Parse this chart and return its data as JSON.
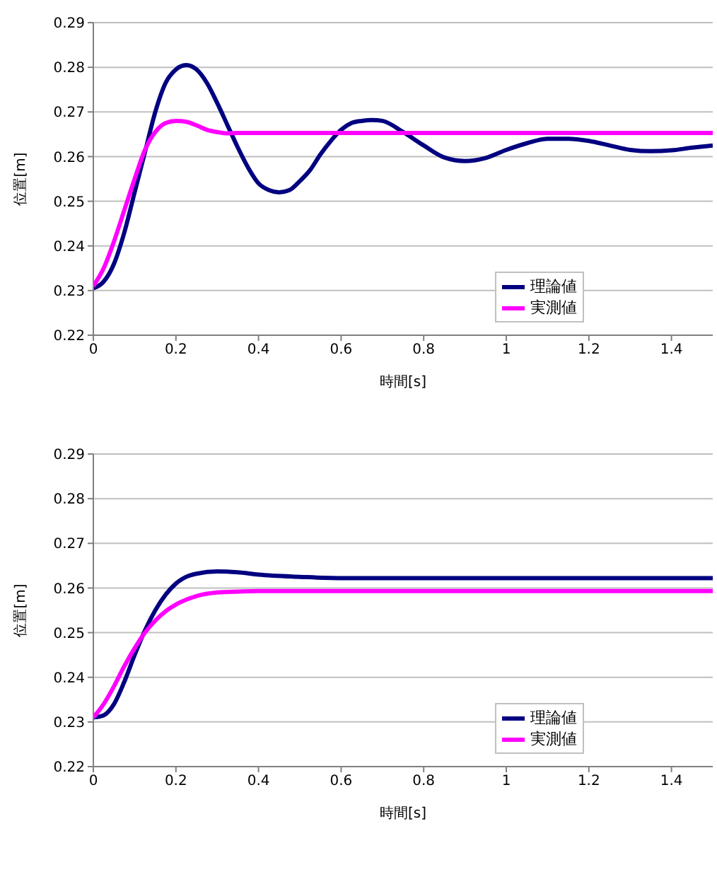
{
  "chart_data": [
    {
      "type": "line",
      "xlabel": "時間[s]",
      "ylabel": "位置[m]",
      "xlim": [
        0,
        1.5
      ],
      "xticks": [
        0,
        0.2,
        0.4,
        0.6,
        0.8,
        1,
        1.2,
        1.4
      ],
      "ylim": [
        0.22,
        0.29
      ],
      "yticks": [
        0.22,
        0.23,
        0.24,
        0.25,
        0.26,
        0.27,
        0.28,
        0.29
      ],
      "grid": "y",
      "legend": "bottom right",
      "marker": "none",
      "line_style": "solid",
      "series": [
        {
          "name": "理論値",
          "color": "#000080",
          "x": [
            0,
            0.025,
            0.05,
            0.075,
            0.1,
            0.125,
            0.15,
            0.175,
            0.2,
            0.225,
            0.25,
            0.275,
            0.3,
            0.325,
            0.35,
            0.375,
            0.4,
            0.425,
            0.45,
            0.475,
            0.5,
            0.525,
            0.55,
            0.575,
            0.6,
            0.625,
            0.65,
            0.675,
            0.7,
            0.75,
            0.8,
            0.85,
            0.9,
            0.95,
            1,
            1.05,
            1.1,
            1.15,
            1.2,
            1.25,
            1.3,
            1.35,
            1.4,
            1.45,
            1.5
          ],
          "values": [
            0.2305,
            0.232,
            0.236,
            0.243,
            0.252,
            0.261,
            0.27,
            0.2765,
            0.2795,
            0.2805,
            0.2795,
            0.2765,
            0.272,
            0.267,
            0.262,
            0.2575,
            0.254,
            0.2525,
            0.252,
            0.2525,
            0.2545,
            0.257,
            0.2605,
            0.2635,
            0.266,
            0.2675,
            0.268,
            0.2682,
            0.268,
            0.2655,
            0.2625,
            0.2598,
            0.259,
            0.2597,
            0.2615,
            0.263,
            0.264,
            0.264,
            0.2635,
            0.2625,
            0.2615,
            0.2612,
            0.2614,
            0.262,
            0.2625
          ]
        },
        {
          "name": "実測値",
          "color": "#ff00ff",
          "x": [
            0,
            0.025,
            0.05,
            0.075,
            0.1,
            0.125,
            0.15,
            0.175,
            0.2,
            0.225,
            0.25,
            0.275,
            0.3,
            0.325,
            0.35,
            0.4,
            1.5
          ],
          "values": [
            0.231,
            0.235,
            0.241,
            0.248,
            0.255,
            0.2615,
            0.2655,
            0.2675,
            0.268,
            0.2678,
            0.267,
            0.266,
            0.2655,
            0.2652,
            0.2653,
            0.2653,
            0.2653
          ]
        }
      ]
    },
    {
      "type": "line",
      "xlabel": "時間[s]",
      "ylabel": "位置[m]",
      "xlim": [
        0,
        1.5
      ],
      "xticks": [
        0,
        0.2,
        0.4,
        0.6,
        0.8,
        1,
        1.2,
        1.4
      ],
      "ylim": [
        0.22,
        0.29
      ],
      "yticks": [
        0.22,
        0.23,
        0.24,
        0.25,
        0.26,
        0.27,
        0.28,
        0.29
      ],
      "grid": "y",
      "legend": "bottom right",
      "marker": "none",
      "line_style": "solid",
      "series": [
        {
          "name": "理論値",
          "color": "#000080",
          "x": [
            0,
            0.025,
            0.05,
            0.075,
            0.1,
            0.125,
            0.15,
            0.175,
            0.2,
            0.225,
            0.25,
            0.3,
            0.35,
            0.4,
            0.5,
            0.6,
            0.7,
            1.5
          ],
          "values": [
            0.231,
            0.2315,
            0.234,
            0.239,
            0.245,
            0.2505,
            0.255,
            0.2585,
            0.261,
            0.2625,
            0.2632,
            0.2637,
            0.2635,
            0.263,
            0.2625,
            0.2622,
            0.2622,
            0.2622
          ]
        },
        {
          "name": "実測値",
          "color": "#ff00ff",
          "x": [
            0,
            0.025,
            0.05,
            0.075,
            0.1,
            0.125,
            0.15,
            0.175,
            0.2,
            0.25,
            0.3,
            0.35,
            0.4,
            1.5
          ],
          "values": [
            0.231,
            0.234,
            0.238,
            0.2425,
            0.2465,
            0.25,
            0.2527,
            0.2548,
            0.2563,
            0.2582,
            0.259,
            0.2592,
            0.2593,
            0.2593
          ]
        }
      ]
    }
  ]
}
